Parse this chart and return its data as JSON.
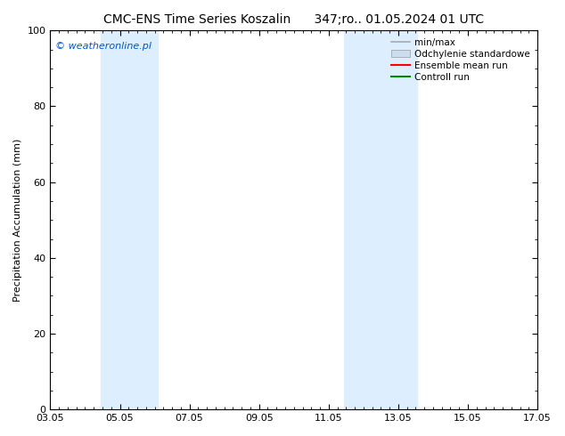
{
  "title": "CMC-ENS Time Series Koszalin      347;ro.. 01.05.2024 01 UTC",
  "ylabel": "Precipitation Accumulation (mm)",
  "watermark": "© weatheronline.pl",
  "watermark_color": "#0055cc",
  "ylim": [
    0,
    100
  ],
  "xticks": [
    "03.05",
    "05.05",
    "07.05",
    "09.05",
    "11.05",
    "13.05",
    "15.05",
    "17.05"
  ],
  "xtick_positions": [
    0,
    2,
    4,
    6,
    8,
    10,
    12,
    14
  ],
  "shaded_regions": [
    {
      "x_start": 1.45,
      "x_end": 3.1
    },
    {
      "x_start": 8.45,
      "x_end": 10.55
    }
  ],
  "shaded_color": "#ddeeff",
  "bg_color": "#ffffff",
  "legend_items": [
    {
      "label": "min/max",
      "color": "#aaaaaa",
      "style": "line",
      "lw": 1.2
    },
    {
      "label": "Odchylenie standardowe",
      "color": "#ccddee",
      "style": "patch"
    },
    {
      "label": "Ensemble mean run",
      "color": "#ff0000",
      "style": "line",
      "lw": 1.5
    },
    {
      "label": "Controll run",
      "color": "#008800",
      "style": "line",
      "lw": 1.5
    }
  ],
  "title_fontsize": 10,
  "axis_label_fontsize": 8,
  "tick_fontsize": 8,
  "watermark_fontsize": 8,
  "legend_fontsize": 7.5
}
